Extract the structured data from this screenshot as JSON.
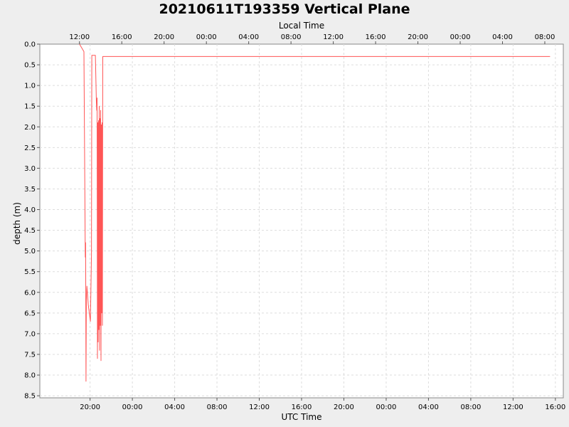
{
  "chart_data": {
    "type": "line",
    "title": "20210611T193359 Vertical Plane",
    "xlabel": "UTC Time",
    "x2label": "Local Time",
    "ylabel": "depth (m)",
    "y_inverted": true,
    "ylim": [
      0.0,
      8.55
    ],
    "xlim_utc": [
      "2021-06-11T15:15",
      "2021-06-13T16:45"
    ],
    "x_ticks_utc": [
      "20:00",
      "00:00",
      "04:00",
      "08:00",
      "12:00",
      "16:00",
      "20:00",
      "00:00",
      "04:00",
      "08:00",
      "12:00",
      "16:00"
    ],
    "x_ticks_local": [
      "12:00",
      "16:00",
      "20:00",
      "00:00",
      "04:00",
      "08:00",
      "12:00",
      "16:00",
      "20:00",
      "00:00",
      "04:00",
      "08:00"
    ],
    "y_ticks": [
      "0.0",
      "0.5",
      "1.0",
      "1.5",
      "2.0",
      "2.5",
      "3.0",
      "3.5",
      "4.0",
      "4.5",
      "5.0",
      "5.5",
      "6.0",
      "6.5",
      "7.0",
      "7.5",
      "8.0",
      "8.5"
    ],
    "grid": true,
    "legend": "none",
    "series": [
      {
        "color": "#ff5555",
        "points": [
          [
            "2021-06-11T19:00",
            0.0
          ],
          [
            "2021-06-11T19:25",
            0.18
          ],
          [
            "2021-06-11T19:33",
            5.15
          ],
          [
            "2021-06-11T19:35",
            4.8
          ],
          [
            "2021-06-11T19:37",
            8.15
          ],
          [
            "2021-06-11T19:39",
            6.2
          ],
          [
            "2021-06-11T19:42",
            5.85
          ],
          [
            "2021-06-11T19:50",
            6.3
          ],
          [
            "2021-06-11T20:02",
            6.7
          ],
          [
            "2021-06-11T20:08",
            5.1
          ],
          [
            "2021-06-11T20:10",
            0.27
          ],
          [
            "2021-06-11T20:30",
            0.27
          ],
          [
            "2021-06-11T20:36",
            1.4
          ],
          [
            "2021-06-11T20:38",
            1.6
          ],
          [
            "2021-06-11T20:40",
            1.3
          ],
          [
            "2021-06-11T20:42",
            7.6
          ],
          [
            "2021-06-11T20:44",
            1.9
          ],
          [
            "2021-06-11T20:46",
            7.2
          ],
          [
            "2021-06-11T20:48",
            1.85
          ],
          [
            "2021-06-11T20:50",
            6.9
          ],
          [
            "2021-06-11T20:52",
            1.5
          ],
          [
            "2021-06-11T20:54",
            7.4
          ],
          [
            "2021-06-11T20:56",
            1.8
          ],
          [
            "2021-06-11T20:58",
            6.8
          ],
          [
            "2021-06-11T21:00",
            1.6
          ],
          [
            "2021-06-11T21:02",
            7.65
          ],
          [
            "2021-06-11T21:04",
            1.95
          ],
          [
            "2021-06-11T21:06",
            6.5
          ],
          [
            "2021-06-11T21:08",
            1.9
          ],
          [
            "2021-06-11T21:10",
            6.8
          ],
          [
            "2021-06-11T21:12",
            0.3
          ],
          [
            "2021-06-13T15:30",
            0.3
          ]
        ]
      }
    ]
  }
}
